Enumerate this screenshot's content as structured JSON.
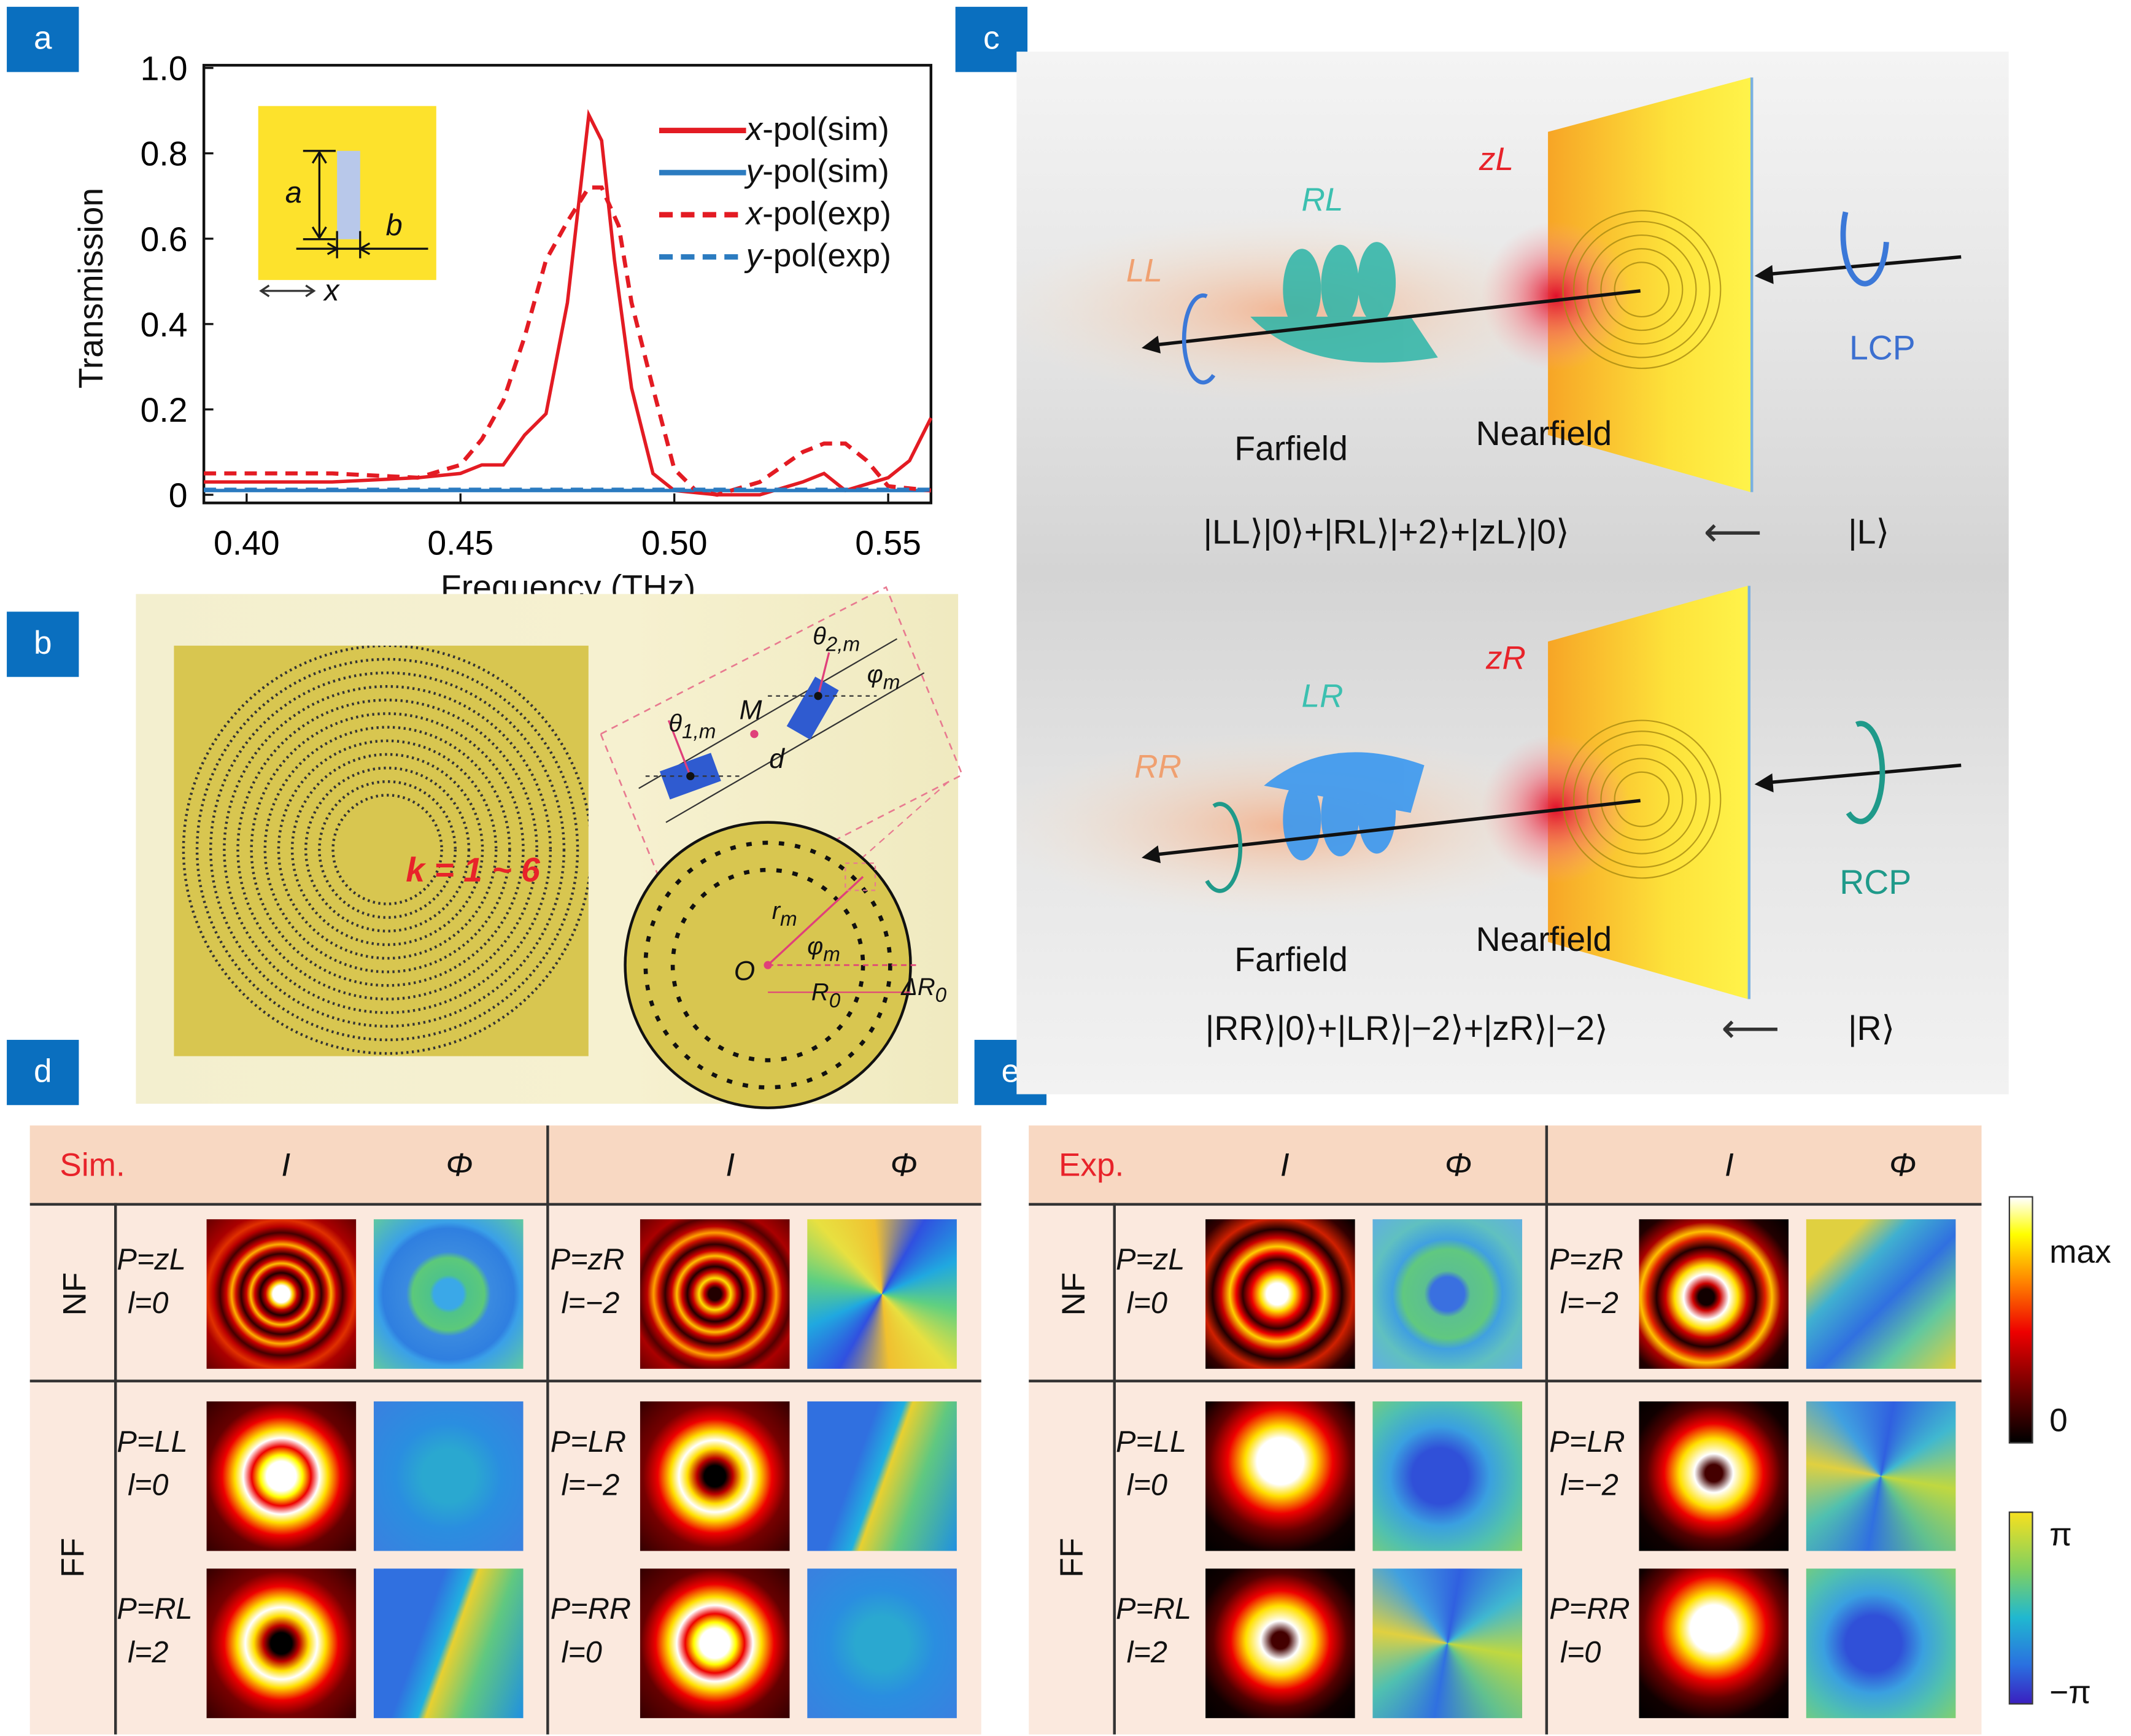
{
  "panel_labels": {
    "a": "a",
    "b": "b",
    "c": "c",
    "d": "d",
    "e": "e"
  },
  "colors": {
    "label_bg": "#0a6fbf",
    "x_pol": "#e31b23",
    "y_pol": "#2b7bc0"
  },
  "chart_data": {
    "type": "line",
    "xlabel": "Frequency (THz)",
    "ylabel": "Transmission",
    "xlim": [
      0.39,
      0.56
    ],
    "ylim": [
      0,
      1.0
    ],
    "xticks": [
      "0.40",
      "0.45",
      "0.50",
      "0.55"
    ],
    "xtick_values": [
      0.4,
      0.45,
      0.5,
      0.55
    ],
    "yticks": [
      "0",
      "0.2",
      "0.4",
      "0.6",
      "0.8",
      "1.0"
    ],
    "ytick_values": [
      0,
      0.2,
      0.4,
      0.6,
      0.8,
      1.0
    ],
    "legend_position": "top-right",
    "grid": false,
    "series": [
      {
        "name": "x-pol(sim)",
        "name_italic": "x",
        "name_rest": "-pol(sim)",
        "color": "#e31b23",
        "style": "solid",
        "x": [
          0.39,
          0.4,
          0.42,
          0.44,
          0.45,
          0.455,
          0.46,
          0.465,
          0.47,
          0.475,
          0.48,
          0.483,
          0.486,
          0.49,
          0.495,
          0.5,
          0.51,
          0.52,
          0.53,
          0.535,
          0.54,
          0.55,
          0.555,
          0.56
        ],
        "y": [
          0.03,
          0.03,
          0.03,
          0.04,
          0.05,
          0.07,
          0.07,
          0.14,
          0.19,
          0.45,
          0.89,
          0.83,
          0.55,
          0.25,
          0.05,
          0.01,
          0.0,
          0.0,
          0.03,
          0.05,
          0.01,
          0.04,
          0.08,
          0.18
        ]
      },
      {
        "name": "y-pol(sim)",
        "name_italic": "y",
        "name_rest": "-pol(sim)",
        "color": "#2b7bc0",
        "style": "solid",
        "x": [
          0.39,
          0.56
        ],
        "y": [
          0.01,
          0.01
        ]
      },
      {
        "name": "x-pol(exp)",
        "name_italic": "x",
        "name_rest": "-pol(exp)",
        "color": "#e31b23",
        "style": "dashed",
        "x": [
          0.39,
          0.42,
          0.44,
          0.45,
          0.455,
          0.46,
          0.465,
          0.47,
          0.475,
          0.48,
          0.483,
          0.487,
          0.49,
          0.495,
          0.5,
          0.505,
          0.51,
          0.52,
          0.53,
          0.535,
          0.54,
          0.545,
          0.55,
          0.56
        ],
        "y": [
          0.05,
          0.05,
          0.04,
          0.07,
          0.13,
          0.22,
          0.37,
          0.55,
          0.64,
          0.72,
          0.72,
          0.63,
          0.45,
          0.25,
          0.06,
          0.01,
          0.0,
          0.03,
          0.1,
          0.12,
          0.12,
          0.08,
          0.02,
          0.01
        ]
      },
      {
        "name": "y-pol(exp)",
        "name_italic": "y",
        "name_rest": "-pol(exp)",
        "color": "#2b7bc0",
        "style": "dashed",
        "x": [
          0.39,
          0.56
        ],
        "y": [
          0.012,
          0.012
        ]
      }
    ]
  },
  "inset_a": {
    "a": "a",
    "b": "b",
    "x": "x"
  },
  "panel_b": {
    "k_label": "k = 1 ~ 6",
    "theta2": {
      "main": "θ",
      "sub": "2,m"
    },
    "theta1": {
      "main": "θ",
      "sub": "1,m"
    },
    "phi_m": {
      "main": "φ",
      "sub": "m"
    },
    "M": "M",
    "d": "d",
    "r_m": {
      "main": "r",
      "sub": "m"
    },
    "phi_m2": {
      "main": "φ",
      "sub": "m"
    },
    "O": "O",
    "R0": {
      "main": "R",
      "sub": "0"
    },
    "dR0": {
      "main": "ΔR",
      "sub": "0"
    }
  },
  "panel_c": {
    "top": {
      "zL": "zL",
      "RL": "RL",
      "LL": "LL",
      "input_label": "LCP",
      "farfield": "Farfield",
      "nearfield": "Nearfield",
      "equation": "|LL⟩|0⟩+|RL⟩|+2⟩+|zL⟩|0⟩",
      "arrow": "⟵",
      "input_state": "|L⟩"
    },
    "bottom": {
      "zR": "zR",
      "LR": "LR",
      "RR": "RR",
      "input_label": "RCP",
      "farfield": "Farfield",
      "nearfield": "Nearfield",
      "equation": "|RR⟩|0⟩+|LR⟩|−2⟩+|zR⟩|−2⟩",
      "arrow": "⟵",
      "input_state": "|R⟩"
    }
  },
  "table_d": {
    "corner": "Sim.",
    "col_I": "I",
    "col_Phi": "Φ",
    "row_NF": "NF",
    "row_FF": "FF",
    "cells": [
      {
        "p": "P=zL",
        "l": "l=0",
        "int": "int-rings",
        "ph": "ph-ring"
      },
      {
        "p": "P=zR",
        "l": "l=−2",
        "int": "int-rings-dark",
        "ph": "ph-vortex"
      },
      {
        "p": "P=LL",
        "l": "l=0",
        "int": "int-donut",
        "ph": "ph-flat"
      },
      {
        "p": "P=LR",
        "l": "l=−2",
        "int": "int-donut-dark",
        "ph": "ph-split"
      },
      {
        "p": "P=RL",
        "l": "l=2",
        "int": "int-donut-dark",
        "ph": "ph-split"
      },
      {
        "p": "P=RR",
        "l": "l=0",
        "int": "int-donut",
        "ph": "ph-flat"
      }
    ]
  },
  "table_e": {
    "corner": "Exp.",
    "col_I": "I",
    "col_Phi": "Φ",
    "row_NF": "NF",
    "row_FF": "FF",
    "cells": [
      {
        "p": "P=zL",
        "l": "l=0",
        "int": "int-exp",
        "ph": "ph-exp-ring"
      },
      {
        "p": "P=zR",
        "l": "l=−2",
        "int": "int-exp-dark",
        "ph": "ph-exp-split"
      },
      {
        "p": "P=LL",
        "l": "l=0",
        "int": "int-exp-blob",
        "ph": "ph-exp"
      },
      {
        "p": "P=LR",
        "l": "l=−2",
        "int": "int-exp-blob-dark",
        "ph": "ph-exp-vortex"
      },
      {
        "p": "P=RL",
        "l": "l=2",
        "int": "int-exp-blob-dark",
        "ph": "ph-exp-vortex"
      },
      {
        "p": "P=RR",
        "l": "l=0",
        "int": "int-exp-blob",
        "ph": "ph-exp"
      }
    ]
  },
  "colorbars": {
    "intensity_max": "max",
    "intensity_min": "0",
    "phase_max": "π",
    "phase_min": "−π"
  }
}
